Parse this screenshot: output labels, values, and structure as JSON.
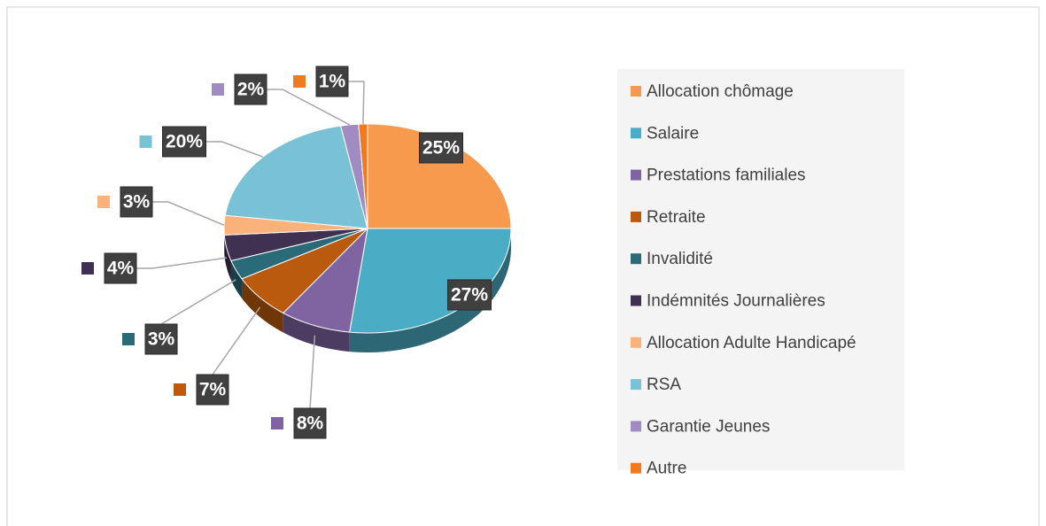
{
  "chart_data": {
    "type": "pie",
    "categories": [
      "Allocation chômage",
      "Salaire",
      "Prestations familiales",
      "Retraite",
      "Invalidité",
      "Indémnités Journalières",
      "Allocation Adulte Handicapé",
      "RSA",
      "Garantie Jeunes",
      "Autre"
    ],
    "values": [
      25,
      27,
      8,
      7,
      3,
      4,
      3,
      20,
      2,
      1
    ],
    "value_labels": [
      "25%",
      "27%",
      "8%",
      "7%",
      "3%",
      "4%",
      "3%",
      "20%",
      "2%",
      "1%"
    ],
    "colors": [
      "#f79a4d",
      "#4bacc6",
      "#8064a2",
      "#b95a0e",
      "#2b6a78",
      "#403152",
      "#fab27a",
      "#79c2d6",
      "#a08cc2",
      "#f27a1e"
    ],
    "legend": "right"
  }
}
